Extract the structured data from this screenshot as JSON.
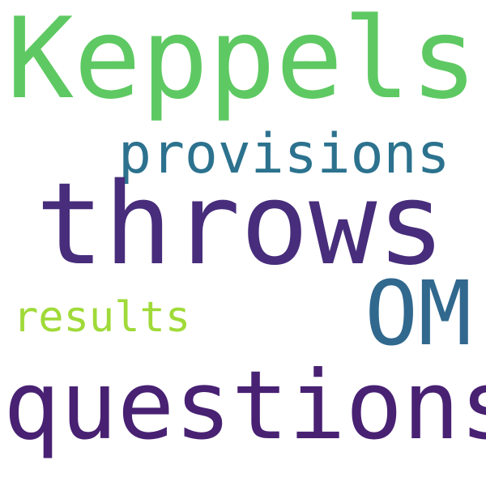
{
  "words": [
    {
      "text": "Keppels",
      "color": "#5ec962"
    },
    {
      "text": "provisions",
      "color": "#2c728e"
    },
    {
      "text": "throws",
      "color": "#472d7b"
    },
    {
      "text": "OM",
      "color": "#31688e"
    },
    {
      "text": "results",
      "color": "#a0da39"
    },
    {
      "text": "questions",
      "color": "#482173"
    }
  ]
}
